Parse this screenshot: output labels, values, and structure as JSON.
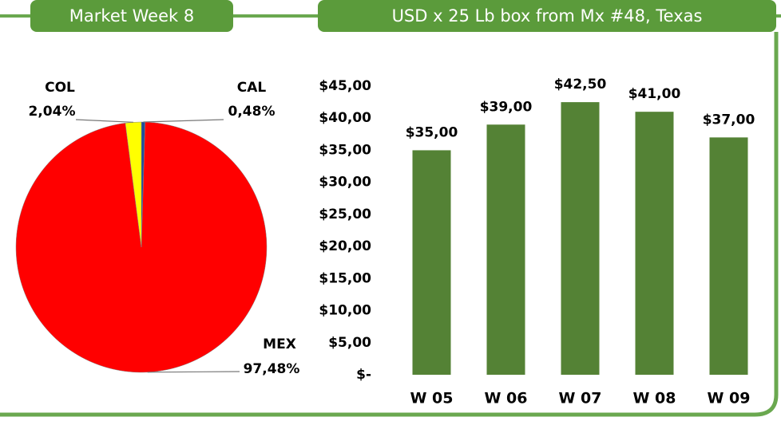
{
  "chart_data": [
    {
      "type": "pie",
      "title": "Market Week 8",
      "categories": [
        "CAL",
        "MEX",
        "COL"
      ],
      "values": [
        0.48,
        97.48,
        2.04
      ],
      "value_labels": [
        "0,48%",
        "97,48%",
        "2,04%"
      ],
      "colors": [
        "#1f4e9a",
        "#ff0000",
        "#ffff00"
      ]
    },
    {
      "type": "bar",
      "title": "USD x 25 Lb box from Mx #48, Texas",
      "categories": [
        "W 05",
        "W 06",
        "W 07",
        "W 08",
        "W 09"
      ],
      "values": [
        35,
        39,
        42.5,
        41,
        37
      ],
      "value_labels": [
        "$35,00",
        "$39,00",
        "$42,50",
        "$41,00",
        "$37,00"
      ],
      "color": "#548235",
      "ylim": [
        0,
        45
      ],
      "yticks": [
        {
          "value": 0,
          "label": "$-"
        },
        {
          "value": 5,
          "label": "$5,00"
        },
        {
          "value": 10,
          "label": "$10,00"
        },
        {
          "value": 15,
          "label": "$15,00"
        },
        {
          "value": 20,
          "label": "$20,00"
        },
        {
          "value": 25,
          "label": "$25,00"
        },
        {
          "value": 30,
          "label": "$30,00"
        },
        {
          "value": 35,
          "label": "$35,00"
        },
        {
          "value": 40,
          "label": "$40,00"
        },
        {
          "value": 45,
          "label": "$45,00"
        }
      ],
      "grid": false
    }
  ]
}
